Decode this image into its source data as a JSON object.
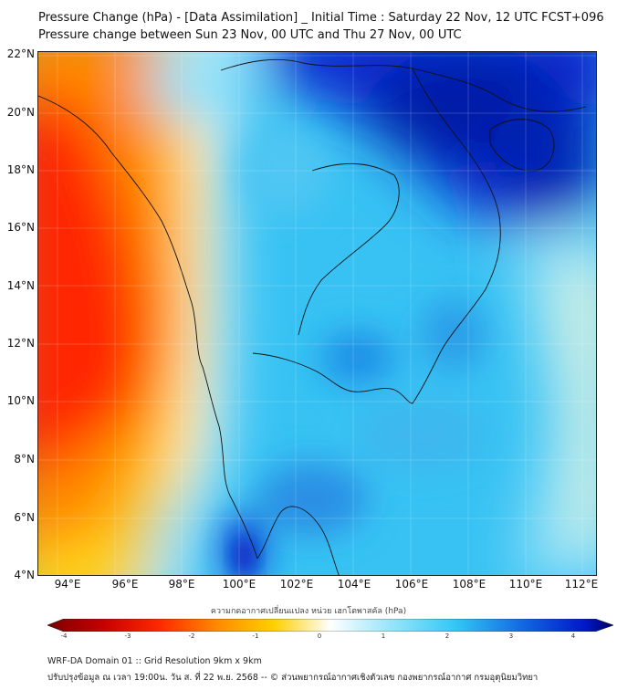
{
  "title": {
    "line1": "Pressure Change (hPa) - [Data Assimilation] _ Initial Time : Saturday 22 Nov, 12 UTC FCST+096",
    "line2": "Pressure change between Sun 23 Nov, 00 UTC and Thu 27 Nov, 00 UTC"
  },
  "map": {
    "lat_labels": [
      "22°N",
      "20°N",
      "18°N",
      "16°N",
      "14°N",
      "12°N",
      "10°N",
      "8°N",
      "6°N",
      "4°N"
    ],
    "lon_labels": [
      "94°E",
      "96°E",
      "98°E",
      "100°E",
      "102°E",
      "104°E",
      "106°E",
      "108°E",
      "110°E",
      "112°E"
    ],
    "field": "pressure change",
    "units": "hPa"
  },
  "colorbar": {
    "caption": "ความกดอากาศเปลี่ยนแปลง หน่วย เฮกโตพาสคัล (hPa)",
    "tick_labels": [
      "-4",
      "-3",
      "-2",
      "-1",
      "0",
      "1",
      "2",
      "3",
      "4"
    ],
    "colors": {
      "low": "#7a0000",
      "mid_low": "#ff2a00",
      "warm": "#ffd000",
      "neutral": "#ffffff",
      "cool": "#33c8f5",
      "high": "#0018c8",
      "max": "#000066"
    }
  },
  "footer": {
    "line1": "WRF-DA Domain 01 :: Grid Resolution 9km x 9km",
    "line2": "ปรับปรุงข้อมูล ณ เวลา 19:00น. วัน ส. ที่ 22 พ.ย. 2568 -- © ส่วนพยากรณ์อากาศเชิงตัวเลข กองพยากรณ์อากาศ กรมอุตุนิยมวิทยา"
  }
}
